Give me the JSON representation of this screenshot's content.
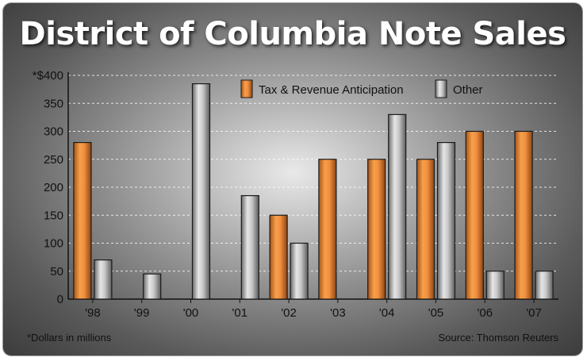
{
  "chart_data": {
    "type": "bar",
    "title": "District of Columbia Note Sales",
    "categories": [
      "'98",
      "'99",
      "'00",
      "'01",
      "'02",
      "'03",
      "'04",
      "'05",
      "'06",
      "'07"
    ],
    "series": [
      {
        "name": "Tax & Revenue Anticipation",
        "color": "#e8892e",
        "values": [
          280,
          0,
          0,
          0,
          150,
          250,
          250,
          250,
          300,
          300
        ]
      },
      {
        "name": "Other",
        "color": "#9a9a9a",
        "values": [
          70,
          45,
          385,
          185,
          100,
          0,
          330,
          280,
          50,
          50
        ]
      }
    ],
    "yticks": [
      "0",
      "50",
      "100",
      "150",
      "200",
      "250",
      "300",
      "350",
      "*$400"
    ],
    "ylim": [
      0,
      400
    ],
    "grid": true,
    "legend_position": "top-right",
    "footnote": "*Dollars in millions",
    "source": "Source: Thomson Reuters"
  }
}
